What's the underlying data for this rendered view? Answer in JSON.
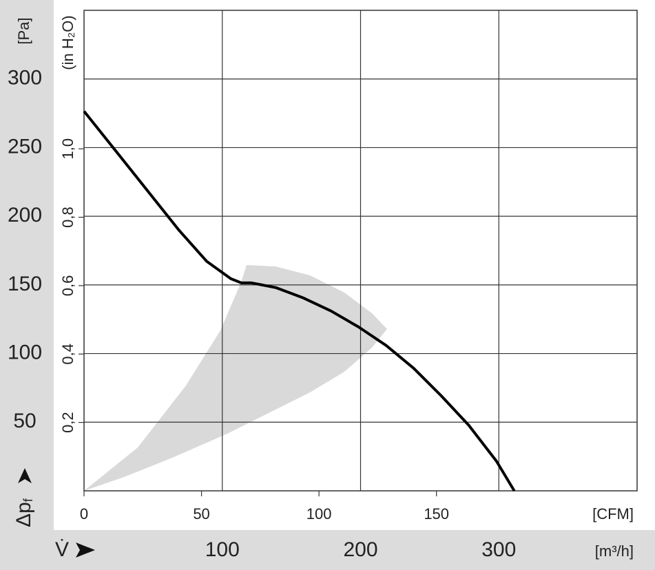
{
  "chart_data": {
    "type": "line",
    "x_symbol": "V̇",
    "x_label": "[m³/h]",
    "y_symbol": "Δp",
    "y_symbol_sub": "f",
    "y_label": "[Pa]",
    "x2_label": "[CFM]",
    "y2_label": "(in H₂O)",
    "x": [
      0,
      23.9,
      48.9,
      68.8,
      88.8,
      106.2,
      113.7,
      121.2,
      138.7,
      158.6,
      178.6,
      198.5,
      218.5,
      238.4,
      258.4,
      278.3,
      298.3,
      311.2
    ],
    "values": [
      276.5,
      246.4,
      214.8,
      189.7,
      167.1,
      154.5,
      151.5,
      151.5,
      148.0,
      140.5,
      131.0,
      119.4,
      105.9,
      89.3,
      69.2,
      47.7,
      21.6,
      0
    ],
    "color": "#000000",
    "xlim": [
      0,
      400
    ],
    "xticks": [
      100,
      200,
      300
    ],
    "ylim": [
      0,
      350
    ],
    "yticks": [
      50,
      100,
      150,
      200,
      250,
      300
    ],
    "x2lim": [
      0,
      235.4
    ],
    "x2ticks": [
      0,
      50,
      100,
      150
    ],
    "y2lim": [
      0,
      1.405
    ],
    "y2ticks": [
      {
        "value": 0.2,
        "label": "0,2"
      },
      {
        "value": 0.4,
        "label": "0,4"
      },
      {
        "value": 0.6,
        "label": "0,6"
      },
      {
        "value": 0.8,
        "label": "0,8"
      },
      {
        "value": 1.0,
        "label": "1,0"
      }
    ],
    "grid": true
  }
}
